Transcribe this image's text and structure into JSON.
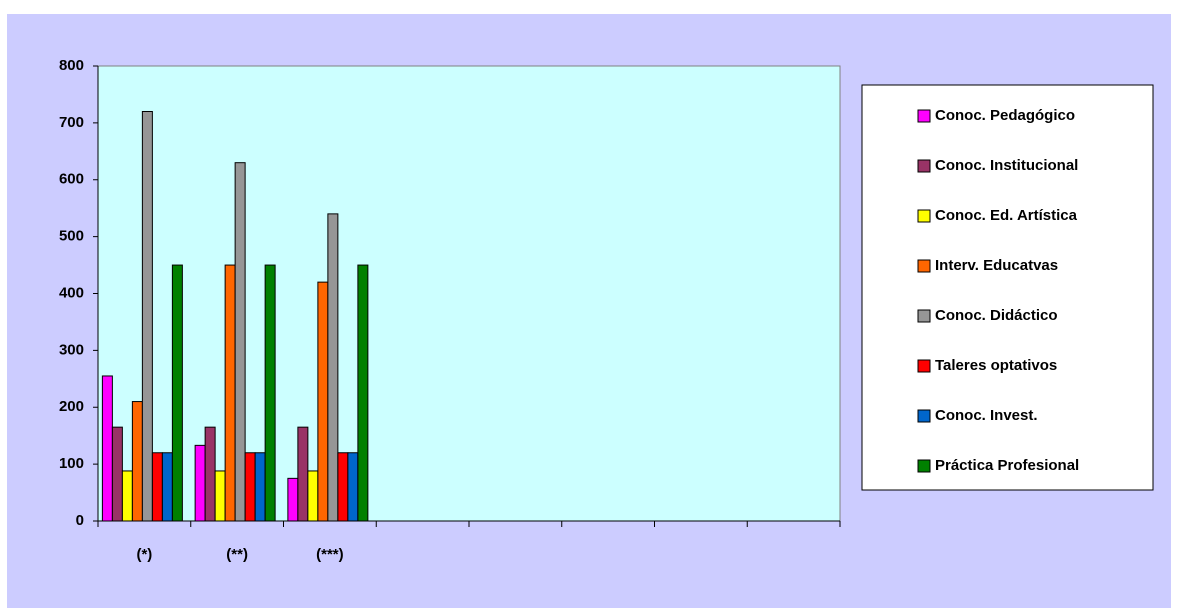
{
  "chart_data": {
    "type": "bar",
    "categories": [
      "(*)",
      "(**)",
      "(***)",
      null,
      null,
      null,
      null,
      null
    ],
    "series": [
      {
        "name": "Conoc. Pedagógico",
        "color": "#ff00ff",
        "values": [
          255,
          133,
          75,
          null,
          null,
          null,
          null,
          null
        ]
      },
      {
        "name": "Conoc. Institucional",
        "color": "#993366",
        "values": [
          165,
          165,
          165,
          null,
          null,
          null,
          null,
          null
        ]
      },
      {
        "name": "Conoc. Ed. Artística",
        "color": "#ffff00",
        "values": [
          88,
          88,
          88,
          null,
          null,
          null,
          null,
          null
        ]
      },
      {
        "name": "Interv. Educatvas",
        "color": "#ff6600",
        "values": [
          210,
          450,
          420,
          null,
          null,
          null,
          null,
          null
        ]
      },
      {
        "name": "Conoc. Didáctico",
        "color": "#969696",
        "values": [
          720,
          630,
          540,
          null,
          null,
          null,
          null,
          null
        ]
      },
      {
        "name": "Taleres optativos",
        "color": "#ff0000",
        "values": [
          120,
          120,
          120,
          null,
          null,
          null,
          null,
          null
        ]
      },
      {
        "name": "Conoc. Invest.",
        "color": "#0066cc",
        "values": [
          120,
          120,
          120,
          null,
          null,
          null,
          null,
          null
        ]
      },
      {
        "name": "Práctica Profesional",
        "color": "#008000",
        "values": [
          450,
          450,
          450,
          null,
          null,
          null,
          null,
          null
        ]
      }
    ],
    "ylim": [
      0,
      800
    ],
    "yticks": [
      0,
      100,
      200,
      300,
      400,
      500,
      600,
      700,
      800
    ],
    "legend": "right"
  }
}
